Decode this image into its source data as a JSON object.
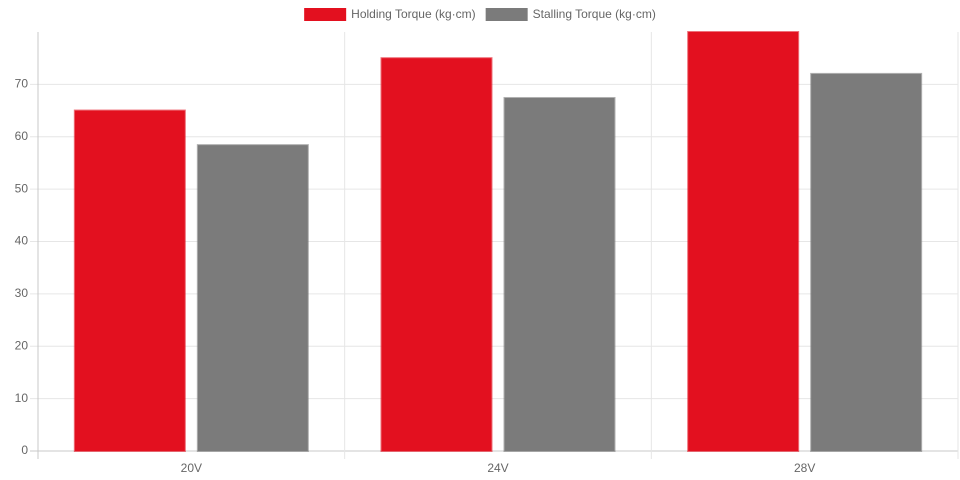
{
  "chart_data": {
    "type": "bar",
    "categories": [
      "20V",
      "24V",
      "28V"
    ],
    "series": [
      {
        "name": "Holding Torque (kg·cm)",
        "color": "#e3101f",
        "values": [
          65,
          75,
          80
        ]
      },
      {
        "name": "Stalling Torque (kg·cm)",
        "color": "#7b7b7b",
        "values": [
          58.4,
          67.4,
          72
        ]
      }
    ],
    "ylim": [
      0,
      80
    ],
    "yticks": [
      0,
      10,
      20,
      30,
      40,
      50,
      60,
      70
    ],
    "grid": true,
    "legend": "top"
  }
}
